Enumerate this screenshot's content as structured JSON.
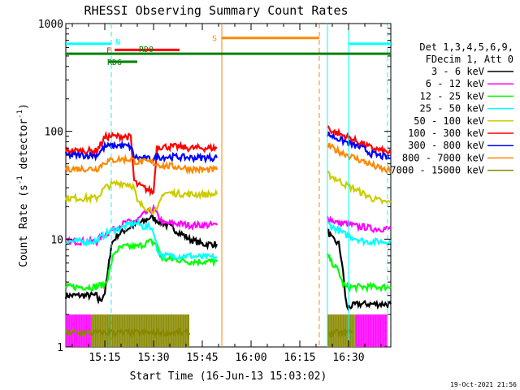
{
  "chart_data": {
    "type": "line",
    "title": "RHESSI Observing Summary Count Rates",
    "xlabel": "Start Time (16-Jun-13 15:03:02)",
    "ylabel_main": "Count Rate (s",
    "ylabel_sup1": "-1",
    "ylabel_mid": " detector",
    "ylabel_sup2": "-1",
    "ylabel_end": ")",
    "yscale": "log",
    "xlim": [
      0,
      100
    ],
    "ylim": [
      1,
      1000
    ],
    "x_ticks": [
      {
        "t": 12,
        "label": "15:15"
      },
      {
        "t": 27,
        "label": "15:30"
      },
      {
        "t": 42,
        "label": "15:45"
      },
      {
        "t": 57,
        "label": "16:00"
      },
      {
        "t": 72,
        "label": "16:15"
      },
      {
        "t": 87,
        "label": "16:30"
      }
    ],
    "y_ticks": [
      {
        "v": 1,
        "label": "1"
      },
      {
        "v": 10,
        "label": "10"
      },
      {
        "v": 100,
        "label": "100"
      },
      {
        "v": 1000,
        "label": "1000"
      }
    ],
    "timestamp": "19-Oct-2021 21:56",
    "legend_header": [
      "Det 1,3,4,5,6,9,",
      "FDecim 1, Att 0"
    ],
    "series": [
      {
        "name": "3 - 6 keV",
        "color": "#000000",
        "segments": [
          {
            "x": [
              0,
              9.5,
              10,
              11,
              12,
              13,
              14,
              16,
              18,
              20,
              22,
              24,
              26,
              28,
              30,
              32,
              34,
              36,
              38,
              40,
              42,
              46.5
            ],
            "y": [
              3,
              3,
              2.7,
              2.8,
              3.2,
              5,
              9,
              11,
              12,
              13,
              14,
              14.5,
              16,
              15,
              14,
              13,
              12,
              11,
              10,
              9.5,
              9,
              9
            ]
          },
          {
            "x": [
              80.5,
              82,
              84,
              85,
              86,
              86.5,
              88,
              90,
              92,
              94,
              96,
              98,
              100
            ],
            "y": [
              12,
              10,
              9,
              6,
              3,
              2.3,
              2.4,
              2.5,
              2.5,
              2.5,
              2.5,
              2.5,
              2.5
            ]
          }
        ]
      },
      {
        "name": "6 - 12 keV",
        "color": "#ff00ff",
        "segments": [
          {
            "x": [
              0,
              9.5,
              10,
              14,
              18,
              22,
              24,
              27,
              28,
              30,
              34,
              38,
              42,
              46.5
            ],
            "y": [
              9.5,
              9.5,
              10,
              12,
              14,
              15,
              17,
              19,
              17,
              14,
              14,
              13.5,
              13.5,
              13.5
            ]
          },
          {
            "x": [
              80.5,
              82,
              84,
              86,
              88,
              90,
              92,
              94,
              96,
              98,
              100
            ],
            "y": [
              16,
              15,
              14,
              14,
              13.5,
              13,
              13,
              12.5,
              12.5,
              12.5,
              12.5
            ]
          }
        ]
      },
      {
        "name": "12 - 25 keV",
        "color": "#00ff00",
        "segments": [
          {
            "x": [
              0,
              9.5,
              10,
              12,
              13,
              14,
              15,
              16,
              18,
              20,
              22,
              24,
              26,
              28,
              29,
              30,
              32,
              34,
              36,
              38,
              40,
              42,
              46.5
            ],
            "y": [
              3.6,
              3.6,
              3.7,
              3.8,
              4.5,
              6,
              7.5,
              8,
              8.5,
              8.5,
              8.5,
              9,
              9.5,
              9,
              7,
              6.5,
              6.5,
              6.5,
              6.3,
              6.2,
              6.2,
              6.2,
              6.2
            ]
          },
          {
            "x": [
              80.5,
              82,
              84,
              85,
              86,
              88,
              90,
              92,
              94,
              96,
              98,
              100
            ],
            "y": [
              7,
              6,
              5,
              4,
              3.6,
              3.6,
              3.6,
              3.6,
              3.6,
              3.6,
              3.6,
              3.6
            ]
          }
        ]
      },
      {
        "name": "25 - 50 keV",
        "color": "#00ffff",
        "segments": [
          {
            "x": [
              0,
              9.5,
              10,
              14,
              18,
              20,
              22,
              24,
              26,
              27,
              28,
              30,
              34,
              38,
              42,
              46.5
            ],
            "y": [
              9.5,
              9.5,
              10,
              12,
              13,
              14,
              14,
              13,
              13,
              12,
              8,
              7,
              7,
              7,
              6.8,
              6.8
            ]
          },
          {
            "x": [
              80.5,
              82,
              84,
              86,
              88,
              90,
              92,
              94,
              96,
              98,
              100
            ],
            "y": [
              14,
              13,
              12,
              11,
              10.5,
              10,
              9.5,
              9.5,
              9.5,
              9.5,
              9.5
            ]
          }
        ]
      },
      {
        "name": "50 - 100 keV",
        "color": "#cccc00",
        "segments": [
          {
            "x": [
              0,
              9.5,
              10,
              12,
              14,
              16,
              18,
              20,
              21,
              22,
              24,
              26,
              28,
              30,
              34,
              38,
              42,
              46.5
            ],
            "y": [
              24,
              24,
              25,
              30,
              32,
              33,
              33,
              32,
              30,
              22,
              20,
              19,
              18,
              27,
              26.5,
              26,
              26,
              26
            ]
          },
          {
            "x": [
              80.5,
              82,
              84,
              86,
              88,
              90,
              92,
              94,
              96,
              98,
              100
            ],
            "y": [
              40,
              38,
              35,
              32,
              30,
              28,
              26,
              24,
              23,
              22,
              22
            ]
          }
        ]
      },
      {
        "name": "100 - 300 keV",
        "color": "#ff0000",
        "segments": [
          {
            "x": [
              0,
              9.5,
              10,
              12,
              14,
              16,
              18,
              20,
              21,
              22,
              24,
              26,
              27,
              28,
              30,
              34,
              38,
              42,
              46.5
            ],
            "y": [
              66,
              66,
              70,
              88,
              90,
              90,
              90,
              88,
              35,
              32,
              30,
              28,
              27,
              72,
              72,
              72,
              70,
              70,
              70
            ]
          },
          {
            "x": [
              80.5,
              82,
              84,
              86,
              88,
              90,
              92,
              94,
              96,
              98,
              100
            ],
            "y": [
              110,
              100,
              95,
              90,
              85,
              80,
              75,
              70,
              68,
              65,
              63
            ]
          }
        ]
      },
      {
        "name": "300 - 800 keV",
        "color": "#0000ff",
        "segments": [
          {
            "x": [
              0,
              9.5,
              10,
              12,
              16,
              20,
              21,
              22,
              24,
              26,
              27,
              28,
              30,
              34,
              38,
              42,
              46.5
            ],
            "y": [
              60,
              60,
              62,
              72,
              74,
              72,
              58,
              57,
              56,
              55,
              55,
              58,
              58,
              58,
              57,
              57,
              57
            ]
          },
          {
            "x": [
              80.5,
              82,
              84,
              86,
              88,
              90,
              92,
              94,
              96,
              98,
              100
            ],
            "y": [
              95,
              90,
              85,
              80,
              75,
              72,
              68,
              62,
              60,
              58,
              56
            ]
          }
        ]
      },
      {
        "name": "800 - 7000 keV",
        "color": "#ff8800",
        "segments": [
          {
            "x": [
              0,
              9.5,
              10,
              12,
              16,
              20,
              22,
              26,
              28,
              30,
              34,
              38,
              42,
              46.5
            ],
            "y": [
              45,
              45,
              46,
              52,
              55,
              55,
              52,
              52,
              50,
              48,
              47,
              45,
              44,
              44
            ]
          },
          {
            "x": [
              80.5,
              82,
              84,
              86,
              88,
              90,
              92,
              94,
              96,
              98,
              100
            ],
            "y": [
              75,
              70,
              65,
              62,
              58,
              55,
              52,
              49,
              46,
              44,
              43
            ]
          }
        ]
      },
      {
        "name": "7000 - 15000 keV",
        "color": "#888800",
        "segments": [
          {
            "x": [
              0,
              8,
              12,
              16,
              20,
              24,
              28,
              32,
              36,
              38
            ],
            "y": [
              1.35,
              1.35,
              1.35,
              1.35,
              1.35,
              1.35,
              1.35,
              1.35,
              1.35,
              1.35
            ]
          },
          {
            "x": [
              80.5,
              84,
              88
            ],
            "y": [
              1.35,
              1.35,
              1.35
            ]
          }
        ]
      }
    ],
    "flag_bars": [
      {
        "label": "N",
        "color": "#00ffff",
        "y_value": 650,
        "x_start": 0,
        "x_end": 14
      },
      {
        "label": "F",
        "color": "#ff0000",
        "y_value": 570,
        "x_start": 15,
        "x_end": 35
      },
      {
        "label": "RD0",
        "color": "#008000",
        "y_value": 525,
        "x_start": 0,
        "x_end": 100
      },
      {
        "label": "RD6",
        "color": "#008000",
        "y_value": 442,
        "x_start": 13,
        "x_end": 22
      },
      {
        "label": "S",
        "color": "#ff8800",
        "y_value": 735,
        "x_start": 48,
        "x_end": 78
      },
      {
        "label": "",
        "color": "#00ffff",
        "y_value": 650,
        "x_start": 87,
        "x_end": 100
      }
    ],
    "vertical_markers": [
      {
        "x": 14,
        "color": "#00ffff",
        "style": "dashed"
      },
      {
        "x": 48,
        "color": "#ff8800",
        "style": "solid"
      },
      {
        "x": 78,
        "color": "#ff8800",
        "style": "dashed"
      },
      {
        "x": 80.5,
        "color": "#00ffff",
        "style": "solid"
      },
      {
        "x": 87,
        "color": "#00ffff",
        "style": "solid"
      },
      {
        "x": 99,
        "color": "#00ffff",
        "style": "dashed"
      }
    ],
    "bottom_band": [
      {
        "x_start": 0,
        "x_end": 8,
        "color": "#ff00ff"
      },
      {
        "x_start": 8,
        "x_end": 38,
        "color": "#888800"
      },
      {
        "x_start": 80.5,
        "x_end": 89,
        "color": "#888800"
      },
      {
        "x_start": 89,
        "x_end": 99,
        "color": "#ff00ff"
      }
    ]
  }
}
